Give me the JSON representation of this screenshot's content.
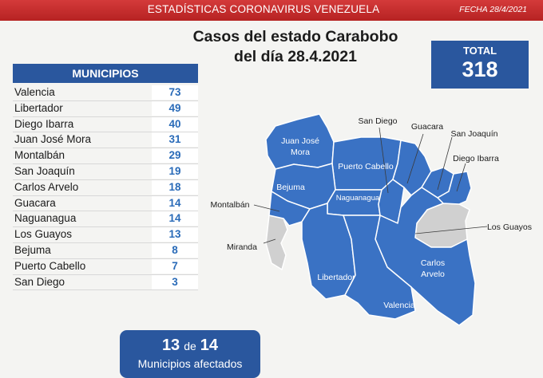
{
  "header": {
    "title": "ESTADÍSTICAS CORONAVIRUS VENEZUELA",
    "date": "FECHA 28/4/2021"
  },
  "title": {
    "line1": "Casos del estado Carabobo",
    "line2": "del día 28.4.2021"
  },
  "total": {
    "label": "TOTAL",
    "value": "318"
  },
  "municipios": {
    "header": "MUNICIPIOS",
    "rows": [
      {
        "name": "Valencia",
        "cases": "73"
      },
      {
        "name": "Libertador",
        "cases": "49"
      },
      {
        "name": "Diego Ibarra",
        "cases": "40"
      },
      {
        "name": "Juan José Mora",
        "cases": "31"
      },
      {
        "name": "Montalbán",
        "cases": "29"
      },
      {
        "name": "San Joaquín",
        "cases": "19"
      },
      {
        "name": "Carlos Arvelo",
        "cases": "18"
      },
      {
        "name": "Guacara",
        "cases": "14"
      },
      {
        "name": "Naguanagua",
        "cases": "14"
      },
      {
        "name": "Los Guayos",
        "cases": "13"
      },
      {
        "name": "Bejuma",
        "cases": "8"
      },
      {
        "name": "Puerto Cabello",
        "cases": "7"
      },
      {
        "name": "San Diego",
        "cases": "3"
      }
    ]
  },
  "affected": {
    "count": "13",
    "connector": "de",
    "total": "14",
    "label": "Municipios afectados"
  },
  "map": {
    "labels": {
      "juan_jose_mora_1": "Juan José",
      "juan_jose_mora_2": "Mora",
      "puerto_cabello": "Puerto Cabello",
      "bejuma": "Bejuma",
      "naguanagua": "Naguanagua",
      "montalban": "Montalbán",
      "miranda": "Miranda",
      "libertador": "Libertador",
      "valencia": "Valencia",
      "carlos_arvelo_1": "Carlos",
      "carlos_arvelo_2": "Arvelo",
      "san_diego": "San Diego",
      "guacara": "Guacara",
      "san_joaquin": "San Joaquín",
      "diego_ibarra": "Diego Ibarra",
      "los_guayos": "Los Guayos"
    }
  },
  "colors": {
    "header_red": "#c42c2c",
    "primary_blue": "#2a579e",
    "map_blue": "#3a72c4",
    "unaffected_gray": "#d0d0d0",
    "count_text": "#2a6bb8"
  }
}
